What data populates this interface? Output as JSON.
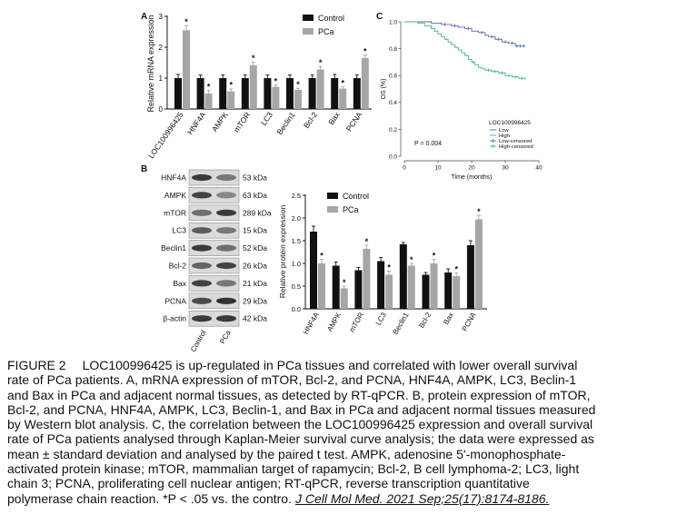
{
  "panels": {
    "a": "A",
    "b": "B",
    "c": "C"
  },
  "chart_data": [
    {
      "id": "A",
      "type": "bar",
      "ylabel": "Relative mRNA expression",
      "ylim": [
        0,
        3
      ],
      "yticks": [
        "0",
        "1",
        "2",
        "3"
      ],
      "grid": false,
      "legend_position": "top-right",
      "significance_marker": "*",
      "categories": [
        "LOC100996425",
        "HNF4A",
        "AMPK",
        "mTOR",
        "LC3",
        "Beclin1",
        "Bcl-2",
        "Bax",
        "PCNA"
      ],
      "series": [
        {
          "name": "Control",
          "color": "#111111",
          "values": [
            1.0,
            1.0,
            1.0,
            1.0,
            1.0,
            1.0,
            1.0,
            1.0,
            1.0
          ],
          "errors": [
            0.12,
            0.1,
            0.1,
            0.1,
            0.1,
            0.1,
            0.1,
            0.12,
            0.1
          ],
          "significant": [
            false,
            false,
            false,
            false,
            false,
            false,
            false,
            false,
            false
          ]
        },
        {
          "name": "PCa",
          "color": "#a6a6a6",
          "values": [
            2.55,
            0.5,
            0.57,
            1.42,
            0.72,
            0.62,
            1.28,
            0.66,
            1.65
          ],
          "errors": [
            0.15,
            0.1,
            0.08,
            0.1,
            0.06,
            0.05,
            0.1,
            0.06,
            0.1
          ],
          "significant": [
            true,
            true,
            true,
            true,
            true,
            true,
            true,
            true,
            true
          ]
        }
      ]
    },
    {
      "id": "B",
      "type": "bar",
      "ylabel": "Relative protein expression",
      "ylim": [
        0,
        2.5
      ],
      "yticks": [
        "0.0",
        "0.5",
        "1.0",
        "1.5",
        "2.0",
        "2.5"
      ],
      "grid": false,
      "legend_position": "top-left",
      "significance_marker": "*",
      "categories": [
        "HNF4A",
        "AMPK",
        "mTOR",
        "LC3",
        "Beclin1",
        "Bcl-2",
        "Bax",
        "PCNA"
      ],
      "series": [
        {
          "name": "Control",
          "color": "#111111",
          "values": [
            1.7,
            0.95,
            0.85,
            1.05,
            1.42,
            0.75,
            0.8,
            1.4
          ],
          "errors": [
            0.12,
            0.08,
            0.06,
            0.08,
            0.04,
            0.05,
            0.08,
            0.1
          ],
          "significant": [
            false,
            false,
            false,
            false,
            false,
            false,
            false,
            false
          ]
        },
        {
          "name": "PCa",
          "color": "#a6a6a6",
          "values": [
            1.0,
            0.45,
            1.32,
            0.75,
            0.95,
            1.0,
            0.72,
            1.97
          ],
          "errors": [
            0.09,
            0.05,
            0.08,
            0.08,
            0.05,
            0.09,
            0.07,
            0.09
          ],
          "significant": [
            true,
            true,
            true,
            true,
            true,
            true,
            true,
            true
          ]
        }
      ]
    },
    {
      "id": "C",
      "type": "line",
      "xlabel": "Time (months)",
      "ylabel": "OS (%)",
      "xlim": [
        0,
        40
      ],
      "ylim": [
        0,
        1.0
      ],
      "xticks": [
        "0",
        "10",
        "20",
        "30",
        "40"
      ],
      "yticks": [
        "0.0",
        "0.2",
        "0.4",
        "0.6",
        "0.8",
        "1.0"
      ],
      "grid": false,
      "legend_position": "bottom-right",
      "legend_title": "LOC100996425",
      "annotation": "P = 0.004",
      "series": [
        {
          "name": "Low",
          "censored_label": "Low-censored",
          "color": "#5566b3",
          "x": [
            0,
            8,
            11,
            14,
            16,
            18,
            20,
            22,
            24,
            25,
            27,
            29,
            31,
            33,
            36
          ],
          "y": [
            1.0,
            0.99,
            0.98,
            0.97,
            0.96,
            0.95,
            0.93,
            0.92,
            0.9,
            0.89,
            0.87,
            0.85,
            0.84,
            0.82,
            0.82
          ],
          "censored_x": [
            12,
            15,
            19,
            23,
            26,
            28,
            30,
            32,
            33.5,
            34.5,
            35.5
          ]
        },
        {
          "name": "High",
          "censored_label": "High-censored",
          "color": "#43b872",
          "x": [
            0,
            4,
            6,
            8,
            9,
            10,
            11,
            12,
            13,
            14,
            15,
            16,
            17,
            18,
            19,
            20,
            21,
            22,
            23,
            24,
            26,
            28,
            30,
            32,
            34,
            36
          ],
          "y": [
            1.0,
            0.99,
            0.97,
            0.95,
            0.93,
            0.91,
            0.89,
            0.87,
            0.85,
            0.83,
            0.81,
            0.79,
            0.77,
            0.75,
            0.72,
            0.7,
            0.68,
            0.66,
            0.65,
            0.64,
            0.63,
            0.62,
            0.6,
            0.59,
            0.58,
            0.57
          ],
          "censored_x": [
            20.5,
            25,
            27,
            29,
            31,
            33,
            35
          ]
        }
      ]
    }
  ],
  "western_blot": {
    "lanes": [
      "Control",
      "PCa"
    ],
    "rows": [
      {
        "protein": "HNF4A",
        "kda": "53 kDa",
        "intensity": [
          0.9,
          0.55
        ]
      },
      {
        "protein": "AMPK",
        "kda": "63 kDa",
        "intensity": [
          0.85,
          0.45
        ]
      },
      {
        "protein": "mTOR",
        "kda": "289 kDa",
        "intensity": [
          0.6,
          0.9
        ]
      },
      {
        "protein": "LC3",
        "kda": "15 kDa",
        "intensity": [
          0.7,
          0.55
        ]
      },
      {
        "protein": "Beclin1",
        "kda": "52 kDa",
        "intensity": [
          0.9,
          0.6
        ]
      },
      {
        "protein": "Bcl-2",
        "kda": "26 kDa",
        "intensity": [
          0.65,
          0.85
        ]
      },
      {
        "protein": "Bax",
        "kda": "21 kDa",
        "intensity": [
          0.85,
          0.55
        ]
      },
      {
        "protein": "PCNA",
        "kda": "29 kDa",
        "intensity": [
          0.8,
          0.95
        ]
      },
      {
        "protein": "β-actin",
        "kda": "42 kDa",
        "intensity": [
          0.9,
          0.9
        ]
      }
    ]
  },
  "caption": {
    "figure_label": "FIGURE 2",
    "lines": [
      "LOC100996425 is up-regulated in PCa tissues and correlated with lower overall survival",
      "rate of PCa patients. A, mRNA expression of mTOR, Bcl-2, and PCNA, HNF4A, AMPK, LC3, Beclin-1",
      "and Bax in PCa and adjacent normal tissues, as detected by RT-qPCR. B, protein expression of mTOR,",
      "Bcl-2, and PCNA, HNF4A, AMPK, LC3, Beclin-1, and Bax in PCa and adjacent normal tissues measured",
      "by Western blot analysis. C, the correlation between the LOC100996425 expression and overall survival",
      "rate of PCa patients analysed through Kaplan-Meier survival curve analysis; the data were expressed as",
      "mean ± standard deviation and analysed by the paired t test. AMPK, adenosine 5'-monophosphate-",
      "activated protein kinase; mTOR, mammalian target of rapamycin; Bcl-2, B cell lymphoma-2; LC3, light",
      "chain 3; PCNA, proliferating cell nuclear antigen; RT-qPCR, reverse transcription quantitative",
      "polymerase chain reaction. *P < .05 vs. the contro."
    ],
    "citation": "J Cell Mol Med. 2021 Sep;25(17):8174-8186."
  }
}
